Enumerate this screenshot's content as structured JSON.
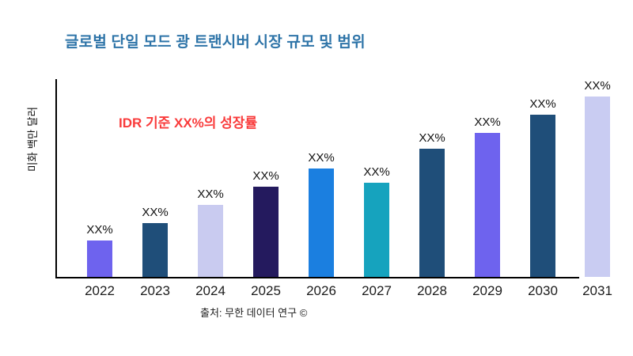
{
  "page": {
    "background": "#ffffff"
  },
  "header": {
    "title": "글로벌 단일 모드 광 트랜시버 시장 규모 및 범위",
    "title_color": "#2e74a8"
  },
  "annotation": {
    "text": "IDR 기준 XX%의 성장률",
    "color": "#f93b3b"
  },
  "footer": {
    "source": "출처: 무한 데이터 연구 ©"
  },
  "chart_data": {
    "type": "bar",
    "title": "글로벌 단일 모드 광 트랜시버 시장 규모 및 범위",
    "xlabel": "",
    "ylabel": "미화 백만 달러",
    "categories": [
      "2022",
      "2023",
      "2024",
      "2025",
      "2026",
      "2027",
      "2028",
      "2029",
      "2030",
      "2031"
    ],
    "value_labels": [
      "XX%",
      "XX%",
      "XX%",
      "XX%",
      "XX%",
      "XX%",
      "XX%",
      "XX%",
      "XX%",
      "XX%"
    ],
    "relative_heights": [
      0.2,
      0.3,
      0.4,
      0.5,
      0.6,
      0.52,
      0.71,
      0.8,
      0.9,
      1.0
    ],
    "bar_colors": [
      "#6e63ee",
      "#1f4e79",
      "#c9cbf0",
      "#241a5e",
      "#1b7fe0",
      "#16a3be",
      "#1f4e79",
      "#6e63ee",
      "#1f4e79",
      "#c9ccf2"
    ],
    "grid": false,
    "y_axis_tick_labels": "none",
    "annotation": "IDR 기준 XX%의 성장률",
    "source": "출처: 무한 데이터 연구 ©",
    "legend": "none"
  }
}
